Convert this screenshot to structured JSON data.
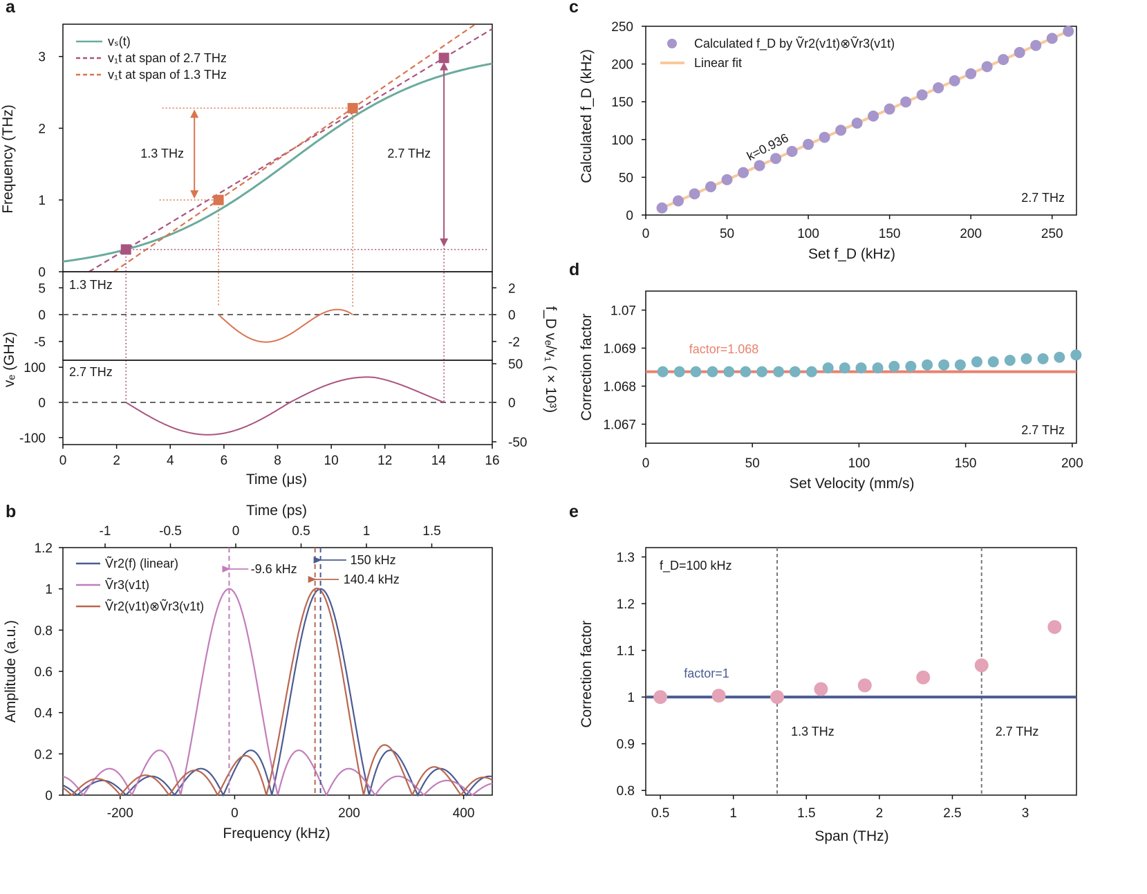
{
  "chart_data": [
    {
      "panel": "a",
      "type": "line",
      "top": {
        "ylabel": "Frequency (THz)",
        "ylim": [
          0,
          3.45
        ],
        "xlim": [
          0,
          16
        ],
        "yticks": [
          "0",
          "1",
          "2",
          "3"
        ],
        "legend": [
          "vₛ(t)",
          "v₁t at span of 2.7 THz",
          "v₁t at span of 1.3 THz"
        ],
        "colors": {
          "vs": "#6aab9c",
          "span27": "#a9547f",
          "span13": "#d9754f"
        },
        "markers_27": [
          [
            2.35,
            0.31
          ],
          [
            14.2,
            2.98
          ]
        ],
        "markers_13": [
          [
            5.8,
            1.0
          ],
          [
            10.8,
            2.28
          ]
        ],
        "span27_label": "2.7 THz",
        "span13_label": "1.3 THz"
      },
      "mid": {
        "label": "1.3 THz",
        "ylim_left": [
          -8.5,
          8
        ],
        "yticks_left": [
          "5",
          "0",
          "-5"
        ],
        "yticks_right": [
          "2",
          "0",
          "-2"
        ]
      },
      "bottom": {
        "label": "2.7 THz",
        "ylim_left": [
          -120,
          120
        ],
        "yticks_left": [
          "100",
          "0",
          "-100"
        ],
        "yticks_right": [
          "50",
          "0",
          "-50"
        ]
      },
      "ylabel_left": "vₑ (GHz)",
      "ylabel_right": "f_D vₑ/v₁ ( × 10³)",
      "xlabel": "Time (μs)",
      "xticks": [
        "0",
        "2",
        "4",
        "6",
        "8",
        "10",
        "12",
        "14",
        "16"
      ]
    },
    {
      "panel": "b",
      "type": "line",
      "xlabel": "Frequency (kHz)",
      "ylabel": "Amplitude (a.u.)",
      "top_xlabel": "Time (ps)",
      "xlim": [
        -300,
        450
      ],
      "ylim": [
        0,
        1.2
      ],
      "xticks": [
        "-200",
        "0",
        "200",
        "400"
      ],
      "yticks": [
        "0",
        "0.2",
        "0.4",
        "0.6",
        "0.8",
        "1",
        "1.2"
      ],
      "top_xticks": [
        "-1",
        "-0.5",
        "0",
        "0.5",
        "1",
        "1.5"
      ],
      "series": [
        {
          "name": "Ṽr2(f) (linear)",
          "color": "#4a5b93",
          "center": 150
        },
        {
          "name": "Ṽr3(v1t)",
          "color": "#c17ebb",
          "center": -9.6
        },
        {
          "name": "Ṽr2(v1t)⊗Ṽr3(v1t)",
          "color": "#b9674f",
          "center": 140.4
        }
      ],
      "annotations": [
        "-9.6 kHz",
        "150 kHz",
        "140.4 kHz"
      ]
    },
    {
      "panel": "c",
      "type": "scatter",
      "xlabel": "Set f_D (kHz)",
      "ylabel": "Calculated f_D (kHz)",
      "xlim": [
        0,
        265
      ],
      "ylim": [
        0,
        250
      ],
      "xticks": [
        "0",
        "50",
        "100",
        "150",
        "200",
        "250"
      ],
      "yticks": [
        "0",
        "50",
        "100",
        "150",
        "200",
        "250"
      ],
      "x": [
        10,
        20,
        30,
        40,
        50,
        60,
        70,
        80,
        90,
        100,
        110,
        120,
        130,
        140,
        150,
        160,
        170,
        180,
        190,
        200,
        210,
        220,
        230,
        240,
        250,
        260
      ],
      "slope": 0.936,
      "legend": [
        "Calculated f_D by Ṽr2(v1t)⊗Ṽr3(v1t)",
        "Linear fit"
      ],
      "fit_label": "k=0.936",
      "span_label": "2.7 THz",
      "colors": {
        "points": "#a696cb",
        "fit": "#f9c99a"
      }
    },
    {
      "panel": "d",
      "type": "scatter",
      "xlabel": "Set Velocity (mm/s)",
      "ylabel": "Correction factor",
      "xlim": [
        0,
        202
      ],
      "ylim": [
        1.0665,
        1.0705
      ],
      "xticks": [
        "0",
        "50",
        "100",
        "150",
        "200"
      ],
      "yticks": [
        "1.067",
        "1.068",
        "1.069",
        "1.07"
      ],
      "x": [
        8,
        15.8,
        23.5,
        31.3,
        39,
        46.8,
        54.5,
        62.3,
        70,
        77.8,
        85.5,
        93.3,
        101,
        108.8,
        116.5,
        124.3,
        132,
        139.8,
        147.5,
        155.3,
        163,
        170.8,
        178.5,
        186.3,
        194,
        201.8
      ],
      "y": [
        1.06838,
        1.06838,
        1.06838,
        1.06838,
        1.06838,
        1.06838,
        1.06838,
        1.06838,
        1.06838,
        1.06838,
        1.06848,
        1.06848,
        1.06848,
        1.06848,
        1.06852,
        1.06852,
        1.06856,
        1.06856,
        1.06856,
        1.06864,
        1.06864,
        1.06868,
        1.06872,
        1.06872,
        1.06876,
        1.06882
      ],
      "factor": 1.06838,
      "factor_label": "factor=1.068",
      "span_label": "2.7 THz",
      "colors": {
        "points": "#78b3c1",
        "line": "#e9826f"
      }
    },
    {
      "panel": "e",
      "type": "scatter",
      "xlabel": "Span (THz)",
      "ylabel": "Correction factor",
      "xlim": [
        0.4,
        3.35
      ],
      "ylim": [
        0.79,
        1.32
      ],
      "xticks": [
        "0.5",
        "1",
        "1.5",
        "2",
        "2.5",
        "3"
      ],
      "yticks": [
        "0.8",
        "0.9",
        "1",
        "1.1",
        "1.2",
        "1.3"
      ],
      "x": [
        0.5,
        0.9,
        1.3,
        1.6,
        1.9,
        2.3,
        2.7,
        3.2
      ],
      "y": [
        1.0,
        1.003,
        1.0,
        1.017,
        1.025,
        1.042,
        1.068,
        1.15
      ],
      "factor": 1.0,
      "factor_label": "factor=1",
      "fd_label": "f_D=100 kHz",
      "vlines": [
        1.3,
        2.7
      ],
      "vline_labels": [
        "1.3 THz",
        "2.7 THz"
      ],
      "colors": {
        "points": "#e4a3b7",
        "line": "#4a5b93"
      }
    }
  ]
}
